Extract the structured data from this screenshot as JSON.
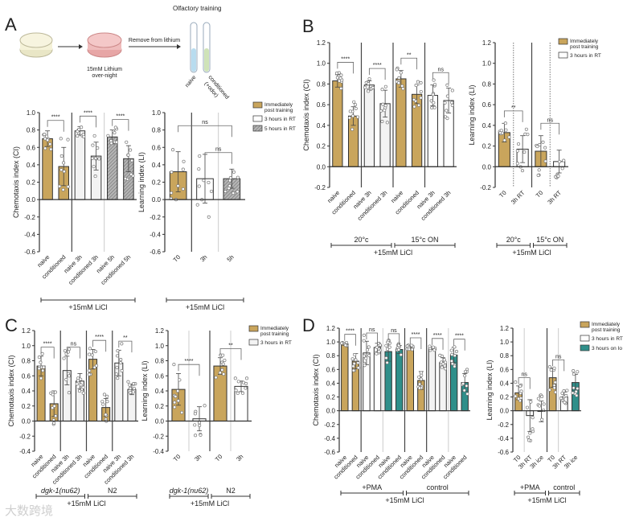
{
  "figure": {
    "panel_letters": [
      "A",
      "B",
      "C",
      "D"
    ],
    "schematic": {
      "title": "Olfactory training",
      "dish_label_line1": "15mM Lithium",
      "dish_label_line2": "over-night",
      "arrow_label": "Remove from lithium",
      "tube_labels": [
        "naive",
        "conditioned",
        "(+odor)"
      ]
    },
    "legends": {
      "A": [
        "Immediately",
        "post training",
        "3 hours in RT",
        "5 hours in RT"
      ],
      "B": [
        "Immediately",
        "post training",
        "3 hours in RT"
      ],
      "C": [
        "Immediately",
        "post training",
        "3 hours in RT"
      ],
      "D": [
        "Immediately",
        "post training",
        "3 hours in RT",
        "3 hours on Io"
      ]
    },
    "watermark": "大数跨境",
    "colors": {
      "gold": "#c9a55c",
      "white": "#ffffff",
      "light": "#f3f3f3",
      "teal": "#2f8f8a",
      "hatch": "#8a8a8a"
    }
  },
  "chart_data": [
    {
      "id": "A-chemotaxis",
      "type": "bar",
      "ylabel": "Chemotaxis index (CI)",
      "ylim": [
        -0.6,
        1.0
      ],
      "yticks": [
        "1.0",
        "0.8",
        "0.6",
        "0.4",
        "0.2",
        "0.0",
        "-0.2",
        "-0.4",
        "-0.6"
      ],
      "categories": [
        "naive",
        "conditioned",
        "naive 3h",
        "conditioned 3h",
        "naive 5h",
        "conditioned 5h"
      ],
      "values": [
        0.7,
        0.38,
        0.79,
        0.5,
        0.72,
        0.47
      ],
      "errors": [
        0.09,
        0.22,
        0.05,
        0.16,
        0.08,
        0.15
      ],
      "fills": [
        "gold",
        "gold",
        "light",
        "light",
        "hatch",
        "hatch"
      ],
      "dividers": [
        [
          1,
          "solid"
        ],
        [
          3,
          "light"
        ]
      ],
      "significance": [
        [
          0,
          1,
          "****"
        ],
        [
          2,
          3,
          "****"
        ],
        [
          4,
          5,
          "****"
        ]
      ],
      "groups": [],
      "footer": "+15mM LiCl"
    },
    {
      "id": "A-learning",
      "type": "bar",
      "ylabel": "Learning index (LI)",
      "ylim": [
        -0.6,
        1.0
      ],
      "yticks": [
        "1.0",
        "0.8",
        "0.6",
        "0.4",
        "0.2",
        "0.0",
        "-0.2",
        "-0.4",
        "-0.6"
      ],
      "categories": [
        "T0",
        "3h",
        "5h"
      ],
      "values": [
        0.32,
        0.24,
        0.24
      ],
      "errors": [
        0.23,
        0.28,
        0.11
      ],
      "fills": [
        "gold",
        "white",
        "hatch"
      ],
      "dividers": [
        [
          0,
          "solid"
        ],
        [
          1,
          "light"
        ]
      ],
      "significance": [
        [
          0,
          2,
          "ns"
        ],
        [
          1,
          2,
          "ns"
        ]
      ],
      "groups": [],
      "footer": "+15mM LiCl"
    },
    {
      "id": "B-chemotaxis",
      "type": "bar",
      "ylabel": "Chemotaxis index (CI)",
      "ylim": [
        -0.2,
        1.2
      ],
      "yticks": [
        "1.2",
        "1.0",
        "0.8",
        "0.6",
        "0.4",
        "0.2",
        "0.0",
        "-0.2"
      ],
      "categories": [
        "naive",
        "conditioned",
        "naive 3h",
        "conditioned 3h",
        "naive",
        "conditioned",
        "naive 3h",
        "conditioned 3h"
      ],
      "values": [
        0.83,
        0.49,
        0.79,
        0.61,
        0.85,
        0.7,
        0.69,
        0.64
      ],
      "errors": [
        0.06,
        0.09,
        0.04,
        0.13,
        0.08,
        0.09,
        0.1,
        0.12
      ],
      "fills": [
        "gold",
        "gold",
        "light",
        "light",
        "gold",
        "gold",
        "white",
        "white"
      ],
      "dividers": [
        [
          1,
          "solid"
        ],
        [
          3,
          "solid"
        ],
        [
          5,
          "solid"
        ]
      ],
      "significance": [
        [
          0,
          1,
          "****"
        ],
        [
          2,
          3,
          "****"
        ],
        [
          4,
          5,
          "**"
        ],
        [
          6,
          7,
          "ns"
        ]
      ],
      "groups": [
        [
          "20°c",
          0,
          3
        ],
        [
          "15°c ON",
          4,
          7
        ]
      ],
      "footer": "+15mM LiCl"
    },
    {
      "id": "B-learning",
      "type": "bar",
      "ylabel": "Learning index (LI)",
      "ylim": [
        -0.2,
        1.2
      ],
      "yticks": [
        "1.2",
        "1.0",
        "0.8",
        "0.6",
        "0.4",
        "0.2",
        "0.0",
        "-0.2"
      ],
      "categories": [
        "T0",
        "3h RT",
        "T0",
        "3h RT"
      ],
      "values": [
        0.33,
        0.17,
        0.15,
        0.05
      ],
      "errors": [
        0.09,
        0.13,
        0.15,
        0.11
      ],
      "fills": [
        "gold",
        "white",
        "gold",
        "white"
      ],
      "dividers": [
        [
          0,
          "dotted"
        ],
        [
          1,
          "solid"
        ],
        [
          2,
          "dotted"
        ]
      ],
      "significance": [
        [
          0,
          1,
          "**"
        ],
        [
          2,
          3,
          "ns"
        ]
      ],
      "groups": [
        [
          "20°c",
          0,
          1
        ],
        [
          "15°c ON",
          2,
          3
        ]
      ],
      "footer": "+15mM LiCl"
    },
    {
      "id": "C-chemotaxis",
      "type": "bar",
      "ylabel": "Chemotaxis index (CI)",
      "ylim": [
        -0.4,
        1.2
      ],
      "yticks": [
        "1.2",
        "1.0",
        "0.8",
        "0.6",
        "0.4",
        "0.2",
        "0.0",
        "-0.2",
        "-0.4"
      ],
      "categories": [
        "naive",
        "conditioned",
        "naive 3h",
        "conditioned 3h",
        "naive",
        "conditioned",
        "naive 3h",
        "conditioned 3h"
      ],
      "values": [
        0.73,
        0.23,
        0.67,
        0.53,
        0.82,
        0.18,
        0.77,
        0.42
      ],
      "errors": [
        0.13,
        0.17,
        0.19,
        0.1,
        0.13,
        0.12,
        0.17,
        0.07
      ],
      "fills": [
        "gold",
        "gold",
        "light",
        "light",
        "gold",
        "gold",
        "light",
        "light"
      ],
      "dividers": [
        [
          1,
          "solid"
        ],
        [
          3,
          "solid"
        ],
        [
          5,
          "solid"
        ]
      ],
      "significance": [
        [
          0,
          1,
          "****"
        ],
        [
          2,
          3,
          "ns"
        ],
        [
          4,
          5,
          "****"
        ],
        [
          6,
          7,
          "**"
        ]
      ],
      "groups": [
        [
          "dgk-1(nu62)",
          0,
          3
        ],
        [
          "N2",
          4,
          7
        ]
      ],
      "footer": "+15mM LiCl"
    },
    {
      "id": "C-learning",
      "type": "bar",
      "ylabel": "Learning index (LI)",
      "ylim": [
        -0.4,
        1.2
      ],
      "yticks": [
        "1.2",
        "1.0",
        "0.8",
        "0.6",
        "0.4",
        "0.2",
        "0.0",
        "-0.2",
        "-0.4"
      ],
      "categories": [
        "T0",
        "3h",
        "T0",
        "3h"
      ],
      "values": [
        0.42,
        0.03,
        0.73,
        0.46
      ],
      "errors": [
        0.21,
        0.16,
        0.11,
        0.07
      ],
      "fills": [
        "gold",
        "white",
        "gold",
        "white"
      ],
      "dividers": [
        [
          0,
          "light"
        ],
        [
          1,
          "solid"
        ],
        [
          2,
          "light"
        ]
      ],
      "significance": [
        [
          0,
          1,
          "****"
        ],
        [
          2,
          3,
          "**"
        ]
      ],
      "groups": [
        [
          "dgk-1(nu62)",
          0,
          1
        ],
        [
          "N2",
          2,
          3
        ]
      ],
      "footer": "+15mM LiCl"
    },
    {
      "id": "D-chemotaxis",
      "type": "bar",
      "ylabel": "Chemotaxis index (CI)",
      "ylim": [
        -0.6,
        1.2
      ],
      "yticks": [
        "1.2",
        "1.0",
        "0.8",
        "0.6",
        "0.4",
        "0.2",
        "0.0",
        "-0.2",
        "-0.4",
        "-0.6"
      ],
      "categories": [
        "naive",
        "conditioned",
        "naive",
        "conditioned",
        "naive",
        "conditioned",
        "naive",
        "conditioned",
        "naive",
        "conditioned",
        "naive",
        "conditioned"
      ],
      "values": [
        0.97,
        0.72,
        0.84,
        0.92,
        0.86,
        0.89,
        0.92,
        0.44,
        0.91,
        0.7,
        0.81,
        0.41
      ],
      "errors": [
        0.02,
        0.11,
        0.17,
        0.06,
        0.14,
        0.06,
        0.02,
        0.13,
        0.02,
        0.07,
        0.11,
        0.13
      ],
      "fills": [
        "gold",
        "gold",
        "white",
        "white",
        "teal",
        "teal",
        "gold",
        "gold",
        "light",
        "light",
        "teal",
        "teal"
      ],
      "dividers": [
        [
          1,
          "solid"
        ],
        [
          3,
          "light"
        ],
        [
          5,
          "solid"
        ],
        [
          7,
          "solid"
        ],
        [
          9,
          "light"
        ]
      ],
      "significance": [
        [
          0,
          1,
          "****"
        ],
        [
          2,
          3,
          "ns"
        ],
        [
          4,
          5,
          "ns"
        ],
        [
          6,
          7,
          "****"
        ],
        [
          8,
          9,
          "****"
        ],
        [
          10,
          11,
          "****"
        ]
      ],
      "groups": [
        [
          "+PMA",
          0,
          5
        ],
        [
          "control",
          6,
          11
        ]
      ],
      "footer": "+15mM LiCl"
    },
    {
      "id": "D-learning",
      "type": "bar",
      "ylabel": "Learning index (LI)",
      "ylim": [
        -0.6,
        1.2
      ],
      "yticks": [
        "1.2",
        "1.0",
        "0.8",
        "0.6",
        "0.4",
        "0.2",
        "0.0",
        "-0.2",
        "-0.4",
        "-0.6"
      ],
      "categories": [
        "T0",
        "3h RT",
        "3h ice",
        "T0",
        "3h RT",
        "3h ice"
      ],
      "values": [
        0.26,
        -0.07,
        -0.01,
        0.48,
        0.2,
        0.41
      ],
      "errors": [
        0.1,
        0.23,
        0.15,
        0.14,
        0.07,
        0.12
      ],
      "fills": [
        "gold",
        "white",
        "teal",
        "gold",
        "white",
        "teal"
      ],
      "dividers": [
        [
          0,
          "light"
        ],
        [
          2,
          "solid"
        ],
        [
          3,
          "light"
        ]
      ],
      "significance": [
        [
          0,
          1,
          "ns"
        ],
        [
          3,
          4,
          "ns"
        ]
      ],
      "groups": [
        [
          "+PMA",
          0,
          2
        ],
        [
          "control",
          3,
          5
        ]
      ],
      "footer": "+15mM LiCl"
    }
  ]
}
